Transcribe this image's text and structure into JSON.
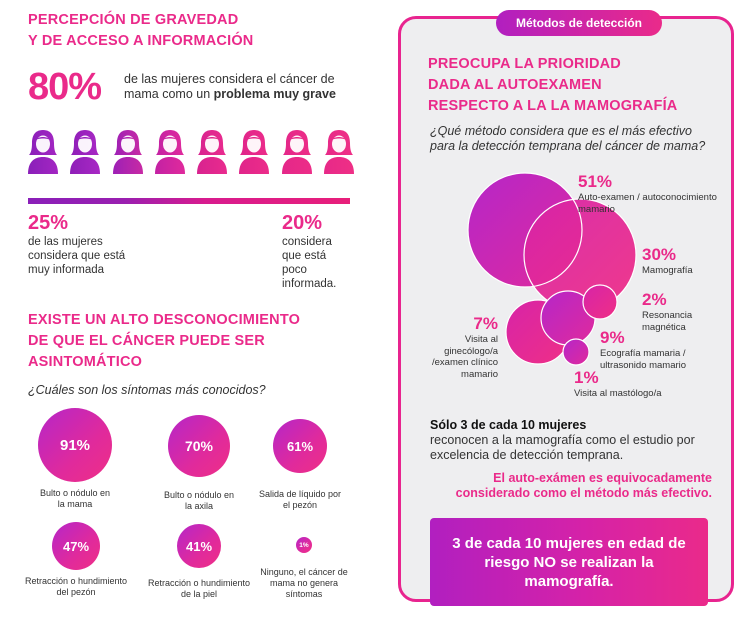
{
  "left": {
    "title_line1": "PERCEPCIÓN DE GRAVEDAD",
    "title_line2": "Y DE ACCESO A INFORMACIÓN",
    "big_pct": "80%",
    "big_desc_pre": "de las mujeres considera el cáncer de mama como un ",
    "big_desc_bold": "problema muy grave",
    "women_icon": "woman-icon",
    "women_count": 8,
    "informed": {
      "pct": "25%",
      "text": "de las mujeres considera que está muy informada",
      "value": 0.25
    },
    "poorly_informed": {
      "pct": "20%",
      "text": "considera que está poco informada.",
      "value": 0.2
    },
    "sec2_line1": "EXISTE UN ALTO DESCONOCIMIENTO",
    "sec2_line2": "DE QUE EL CÁNCER PUEDE SER",
    "sec2_line3": "ASINTOMÁTICO",
    "question": "¿Cuáles son los síntomas más conocidos?",
    "symptoms": [
      {
        "pct": "91%",
        "label": "Bulto o nódulo en la mama"
      },
      {
        "pct": "70%",
        "label": "Bulto o nódulo en la axila"
      },
      {
        "pct": "61%",
        "label": "Salida de líquido por el pezón"
      },
      {
        "pct": "47%",
        "label": "Retracción o hundimiento del pezón"
      },
      {
        "pct": "41%",
        "label": "Retracción o hundimiento de la piel"
      },
      {
        "pct": "1%",
        "label": "Ninguno, el cáncer de mama no genera síntomas"
      }
    ]
  },
  "right": {
    "tag": "Métodos de detección",
    "title_line1": "PREOCUPA LA PRIORIDAD",
    "title_line2": "DADA  AL AUTOEXAMEN",
    "title_line3": "RESPECTO A LA LA MAMOGRAFÍA",
    "question": "¿Qué método considera que es el más efectivo para la detección temprana del cáncer de mama?",
    "methods": [
      {
        "pct": "51%",
        "label": "Auto-examen / autoconocimiento mamario",
        "value": 51
      },
      {
        "pct": "30%",
        "label": "Mamografía",
        "value": 30
      },
      {
        "pct": "2%",
        "label": "Resonancia magnética",
        "value": 2
      },
      {
        "pct": "9%",
        "label": "Ecografía mamaria / ultrasonido mamario",
        "value": 9
      },
      {
        "pct": "7%",
        "label": "Visita al ginecólogo/a /examen clínico mamario",
        "value": 7
      },
      {
        "pct": "1%",
        "label": "Visita al mastólogo/a",
        "value": 1
      }
    ],
    "bold_line": "Sólo 3 de cada 10 mujeres",
    "rest_line": "reconocen a la mamografía como el estudio por excelencia de detección temprana.",
    "pink_note": "El auto-exámen es equivocadamente considerado como el método más efectivo.",
    "cta": "3 de cada 10 mujeres en edad de riesgo NO se realizan la mamografía."
  },
  "colors": {
    "pink": "#ea2a8a",
    "purple": "#b11fc0",
    "panel_bg": "#eeeef0"
  }
}
